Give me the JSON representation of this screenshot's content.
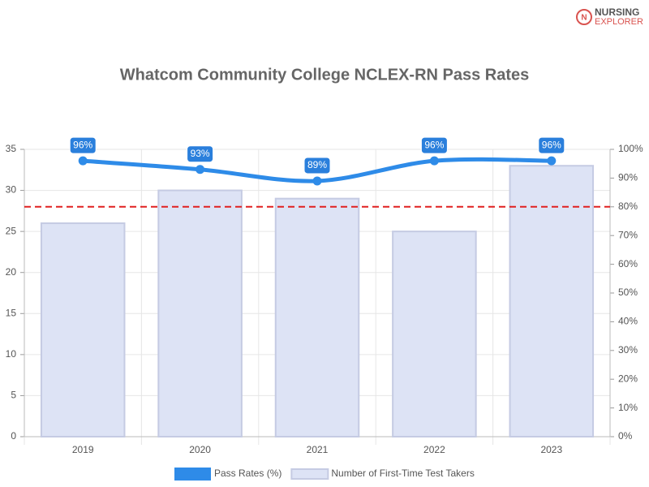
{
  "logo": {
    "line1": "NURSING",
    "line2": "EXPLORER"
  },
  "chart_data": {
    "type": "bar-line",
    "title": "Whatcom Community College NCLEX-RN Pass Rates",
    "categories": [
      "2019",
      "2020",
      "2021",
      "2022",
      "2023"
    ],
    "series": [
      {
        "name": "Pass Rates (%)",
        "type": "line",
        "axis": "y2",
        "color": "#2e8be8",
        "values": [
          96,
          93,
          89,
          96,
          96
        ],
        "value_labels": [
          "96%",
          "93%",
          "89%",
          "96%",
          "96%"
        ]
      },
      {
        "name": "Number of First-Time Test Takers",
        "type": "bar",
        "axis": "y",
        "color": "#dde3f5",
        "values": [
          26,
          30,
          29,
          25,
          33
        ]
      }
    ],
    "ylim": [
      0,
      35
    ],
    "yticks": [
      0,
      5,
      10,
      15,
      20,
      25,
      30,
      35
    ],
    "y2lim": [
      0,
      100
    ],
    "y2ticks": [
      {
        "value": 0,
        "label": "0%"
      },
      {
        "value": 10,
        "label": "10%"
      },
      {
        "value": 20,
        "label": "20%"
      },
      {
        "value": 30,
        "label": "30%"
      },
      {
        "value": 40,
        "label": "40%"
      },
      {
        "value": 50,
        "label": "50%"
      },
      {
        "value": 60,
        "label": "60%"
      },
      {
        "value": 70,
        "label": "70%"
      },
      {
        "value": 80,
        "label": "80%"
      },
      {
        "value": 90,
        "label": "90%"
      },
      {
        "value": 100,
        "label": "100%"
      }
    ],
    "reference_line": {
      "value": 80,
      "axis": "y2",
      "color": "#e02020"
    },
    "grid": true,
    "legend": "bottom"
  }
}
